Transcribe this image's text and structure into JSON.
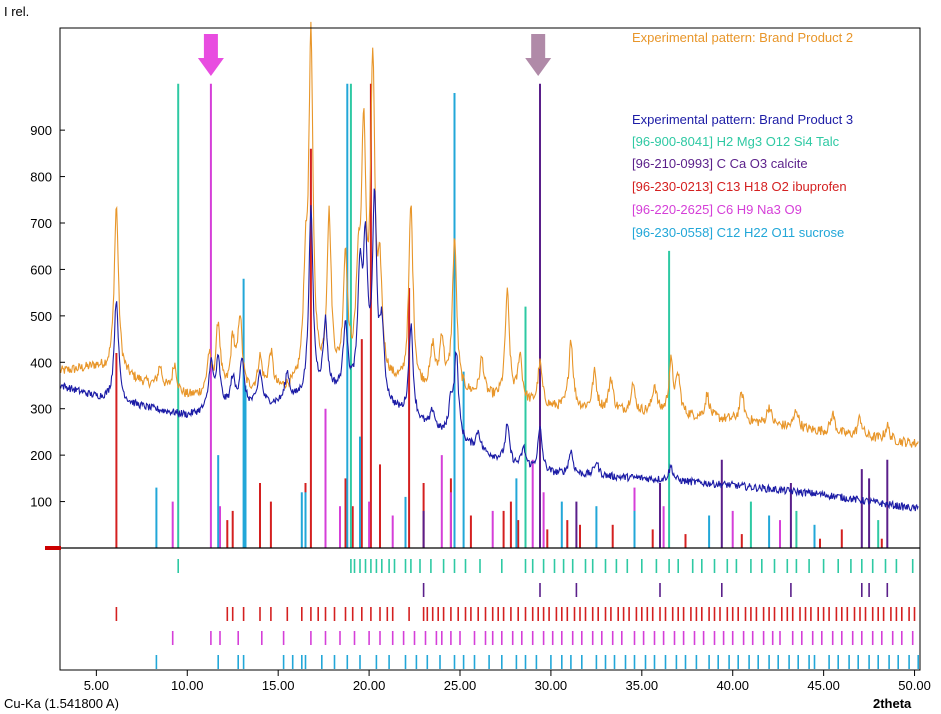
{
  "chart_data": {
    "type": "line",
    "ylabel": "I rel.",
    "xlabel": "2theta",
    "radiation": "Cu-Ka (1.541800 A)",
    "xlim": [
      3,
      50.3
    ],
    "ylim": [
      0,
      1120
    ],
    "xticks": [
      5,
      10,
      15,
      20,
      25,
      30,
      35,
      40,
      45,
      50
    ],
    "xtick_labels": [
      "5.00",
      "10.00",
      "15.00",
      "20.00",
      "25.00",
      "30.00",
      "35.00",
      "40.00",
      "45.00",
      "50.00"
    ],
    "yticks": [
      100,
      200,
      300,
      400,
      500,
      600,
      700,
      800,
      900
    ],
    "colors": {
      "product2": "#e8962a",
      "product3": "#1c1ca6",
      "talc": "#2ec9a3",
      "calcite": "#5a1f8a",
      "ibuprofen": "#d42020",
      "na_citrate": "#d53fd8",
      "sucrose": "#22a7d8",
      "arrow_magenta": "#e84de0",
      "arrow_mauve": "#b08aa8"
    },
    "legend": [
      {
        "key": "product2",
        "label": "Experimental pattern: Brand Product 2"
      },
      {
        "key": "product3",
        "label": "Experimental pattern: Brand Product 3"
      },
      {
        "key": "talc",
        "label": "[96-900-8041] H2 Mg3 O12 Si4  Talc"
      },
      {
        "key": "calcite",
        "label": "[96-210-0993] C Ca O3  calcite"
      },
      {
        "key": "ibuprofen",
        "label": "[96-230-0213] C13 H18 O2 ibuprofen"
      },
      {
        "key": "na_citrate",
        "label": "[96-220-2625] C6 H9 Na3 O9"
      },
      {
        "key": "sucrose",
        "label": "[96-230-0558] C12 H22 O11 sucrose"
      }
    ],
    "arrows": [
      {
        "x": 11.3,
        "color_key": "arrow_magenta"
      },
      {
        "x": 29.3,
        "color_key": "arrow_mauve"
      }
    ],
    "series": [
      {
        "key": "product2",
        "baseline": [
          [
            3,
            380
          ],
          [
            5,
            390
          ],
          [
            8,
            350
          ],
          [
            10,
            325
          ],
          [
            15,
            335
          ],
          [
            20,
            360
          ],
          [
            22,
            340
          ],
          [
            25,
            330
          ],
          [
            30,
            300
          ],
          [
            35,
            290
          ],
          [
            40,
            275
          ],
          [
            45,
            250
          ],
          [
            50,
            225
          ]
        ],
        "peaks": [
          [
            6.1,
            360
          ],
          [
            8.5,
            45
          ],
          [
            9.3,
            60
          ],
          [
            11.2,
            80
          ],
          [
            11.7,
            150
          ],
          [
            12.5,
            110
          ],
          [
            12.9,
            160
          ],
          [
            14.0,
            70
          ],
          [
            14.6,
            80
          ],
          [
            16.5,
            200
          ],
          [
            16.8,
            730
          ],
          [
            17.8,
            350
          ],
          [
            18.7,
            260
          ],
          [
            19.4,
            190
          ],
          [
            19.7,
            500
          ],
          [
            20.2,
            650
          ],
          [
            20.6,
            200
          ],
          [
            22.3,
            390
          ],
          [
            23.5,
            90
          ],
          [
            24.0,
            110
          ],
          [
            24.7,
            330
          ],
          [
            26.2,
            80
          ],
          [
            27.6,
            230
          ],
          [
            28.3,
            100
          ],
          [
            29.4,
            90
          ],
          [
            31.1,
            150
          ],
          [
            32.4,
            80
          ],
          [
            33.3,
            70
          ],
          [
            34.5,
            60
          ],
          [
            35.7,
            60
          ],
          [
            36.6,
            110
          ],
          [
            37.0,
            80
          ],
          [
            38.6,
            50
          ],
          [
            40.5,
            60
          ],
          [
            42.0,
            40
          ],
          [
            43.5,
            40
          ],
          [
            45.5,
            40
          ],
          [
            47.0,
            40
          ],
          [
            48.5,
            30
          ]
        ]
      },
      {
        "key": "product3",
        "baseline": [
          [
            3,
            350
          ],
          [
            5,
            325
          ],
          [
            8,
            300
          ],
          [
            10,
            285
          ],
          [
            12,
            300
          ],
          [
            15,
            310
          ],
          [
            18,
            330
          ],
          [
            20,
            320
          ],
          [
            22,
            280
          ],
          [
            25,
            225
          ],
          [
            28,
            175
          ],
          [
            30,
            160
          ],
          [
            35,
            150
          ],
          [
            40,
            135
          ],
          [
            45,
            115
          ],
          [
            50,
            85
          ]
        ],
        "peaks": [
          [
            6.1,
            220
          ],
          [
            11.3,
            100
          ],
          [
            11.7,
            100
          ],
          [
            12.5,
            60
          ],
          [
            13.0,
            100
          ],
          [
            14.0,
            70
          ],
          [
            15.5,
            60
          ],
          [
            16.8,
            400
          ],
          [
            17.6,
            150
          ],
          [
            18.7,
            150
          ],
          [
            19.5,
            250
          ],
          [
            19.8,
            300
          ],
          [
            20.3,
            410
          ],
          [
            20.7,
            150
          ],
          [
            22.3,
            200
          ],
          [
            23.5,
            40
          ],
          [
            24.5,
            70
          ],
          [
            24.8,
            180
          ],
          [
            26.0,
            40
          ],
          [
            27.6,
            80
          ],
          [
            28.5,
            40
          ],
          [
            29.4,
            90
          ],
          [
            31.1,
            50
          ],
          [
            32.5,
            30
          ],
          [
            36.6,
            30
          ]
        ]
      }
    ],
    "sticks": [
      {
        "key": "ibuprofen",
        "peaks": [
          [
            6.1,
            420
          ],
          [
            12.2,
            60
          ],
          [
            12.5,
            80
          ],
          [
            14.0,
            140
          ],
          [
            14.6,
            100
          ],
          [
            16.5,
            140
          ],
          [
            16.8,
            860
          ],
          [
            17.6,
            210
          ],
          [
            18.7,
            150
          ],
          [
            19.1,
            90
          ],
          [
            19.6,
            450
          ],
          [
            20.1,
            1000
          ],
          [
            20.6,
            180
          ],
          [
            22.2,
            560
          ],
          [
            23.0,
            140
          ],
          [
            24.5,
            150
          ],
          [
            25.6,
            70
          ],
          [
            27.4,
            80
          ],
          [
            27.8,
            100
          ],
          [
            28.2,
            60
          ],
          [
            29.8,
            40
          ],
          [
            30.9,
            60
          ],
          [
            31.6,
            50
          ],
          [
            33.4,
            50
          ],
          [
            35.6,
            40
          ],
          [
            37.4,
            30
          ],
          [
            40.5,
            30
          ],
          [
            44.8,
            20
          ],
          [
            46.0,
            40
          ],
          [
            48.2,
            20
          ]
        ]
      },
      {
        "key": "talc",
        "peaks": [
          [
            9.5,
            1000
          ],
          [
            19.0,
            1000
          ],
          [
            28.6,
            520
          ],
          [
            36.5,
            640
          ],
          [
            41.0,
            100
          ],
          [
            43.5,
            80
          ],
          [
            48.0,
            60
          ]
        ]
      },
      {
        "key": "calcite",
        "peaks": [
          [
            23.0,
            80
          ],
          [
            29.4,
            1000
          ],
          [
            31.4,
            100
          ],
          [
            36.0,
            140
          ],
          [
            39.4,
            190
          ],
          [
            43.2,
            140
          ],
          [
            47.1,
            170
          ],
          [
            47.5,
            150
          ],
          [
            48.5,
            190
          ]
        ]
      },
      {
        "key": "na_citrate",
        "peaks": [
          [
            9.2,
            100
          ],
          [
            11.3,
            1000
          ],
          [
            11.8,
            90
          ],
          [
            17.6,
            300
          ],
          [
            18.4,
            90
          ],
          [
            20.0,
            100
          ],
          [
            21.3,
            70
          ],
          [
            24.0,
            200
          ],
          [
            24.5,
            120
          ],
          [
            26.8,
            80
          ],
          [
            29.0,
            190
          ],
          [
            29.6,
            120
          ],
          [
            34.6,
            130
          ],
          [
            36.2,
            90
          ],
          [
            40.0,
            80
          ],
          [
            42.6,
            60
          ]
        ]
      },
      {
        "key": "sucrose",
        "peaks": [
          [
            8.3,
            130
          ],
          [
            11.7,
            200
          ],
          [
            13.1,
            580
          ],
          [
            13.2,
            350
          ],
          [
            16.3,
            120
          ],
          [
            16.5,
            120
          ],
          [
            18.8,
            1000
          ],
          [
            19.5,
            240
          ],
          [
            22.0,
            110
          ],
          [
            24.7,
            980
          ],
          [
            25.2,
            380
          ],
          [
            28.1,
            150
          ],
          [
            30.6,
            100
          ],
          [
            32.5,
            90
          ],
          [
            34.6,
            80
          ],
          [
            38.7,
            70
          ],
          [
            42.0,
            70
          ],
          [
            44.5,
            50
          ]
        ]
      }
    ],
    "tick_rows": [
      {
        "key": "talc",
        "x": [
          9.5,
          19.0,
          19.2,
          19.5,
          19.8,
          20.1,
          20.4,
          20.7,
          21.1,
          21.4,
          22.0,
          22.3,
          22.8,
          23.4,
          24.1,
          24.7,
          25.3,
          26.1,
          27.3,
          28.6,
          29.0,
          29.6,
          30.2,
          30.7,
          31.2,
          31.9,
          32.3,
          33.0,
          33.6,
          34.2,
          35.0,
          35.8,
          36.5,
          37.0,
          37.8,
          38.3,
          39.0,
          39.7,
          40.2,
          41.0,
          41.6,
          42.3,
          43.0,
          43.5,
          44.2,
          45.0,
          45.8,
          46.5,
          47.1,
          47.7,
          48.4,
          49.0,
          49.9
        ]
      },
      {
        "key": "calcite",
        "x": [
          23.0,
          29.4,
          31.4,
          36.0,
          39.4,
          43.2,
          47.1,
          47.5,
          48.5
        ]
      },
      {
        "key": "ibuprofen",
        "x": [
          6.1,
          12.2,
          12.5,
          13.1,
          14.0,
          14.6,
          15.5,
          16.3,
          16.8,
          17.2,
          17.6,
          18.1,
          18.7,
          19.1,
          19.6,
          20.1,
          20.6,
          21.0,
          21.3,
          22.2,
          23.0,
          23.2,
          23.5,
          23.8,
          24.1,
          24.5,
          24.9,
          25.3,
          25.6,
          26.0,
          26.4,
          26.8,
          27.1,
          27.4,
          27.8,
          28.2,
          28.6,
          29.0,
          29.3,
          29.6,
          29.9,
          30.3,
          30.6,
          30.9,
          31.3,
          31.6,
          31.9,
          32.3,
          32.6,
          33.0,
          33.3,
          33.7,
          34.0,
          34.3,
          34.7,
          35.0,
          35.3,
          35.6,
          36.0,
          36.3,
          36.7,
          37.0,
          37.3,
          37.7,
          38.0,
          38.3,
          38.7,
          39.0,
          39.3,
          39.7,
          40.0,
          40.3,
          40.7,
          41.0,
          41.3,
          41.7,
          42.0,
          42.3,
          42.7,
          43.0,
          43.3,
          43.7,
          44.0,
          44.3,
          44.7,
          45.0,
          45.3,
          45.7,
          46.0,
          46.3,
          46.7,
          47.0,
          47.3,
          47.7,
          48.0,
          48.3,
          48.7,
          49.0,
          49.3,
          49.7,
          50.0
        ]
      },
      {
        "key": "na_citrate",
        "x": [
          9.2,
          11.3,
          11.8,
          12.8,
          14.1,
          15.3,
          16.8,
          17.6,
          18.4,
          19.2,
          20.0,
          20.6,
          21.3,
          21.9,
          22.5,
          23.1,
          23.7,
          24.0,
          24.5,
          25.0,
          25.8,
          26.4,
          26.8,
          27.3,
          27.9,
          28.4,
          29.0,
          29.6,
          30.1,
          30.6,
          31.2,
          31.7,
          32.3,
          32.8,
          33.4,
          33.9,
          34.6,
          35.1,
          35.7,
          36.2,
          36.8,
          37.3,
          37.9,
          38.4,
          39.0,
          39.5,
          40.0,
          40.6,
          41.1,
          41.7,
          42.2,
          42.6,
          43.3,
          43.8,
          44.4,
          44.9,
          45.5,
          46.0,
          46.6,
          47.1,
          47.7,
          48.2,
          48.8,
          49.3,
          49.9
        ]
      },
      {
        "key": "sucrose",
        "x": [
          8.3,
          11.7,
          12.8,
          13.1,
          15.3,
          15.8,
          16.3,
          16.5,
          17.4,
          18.1,
          18.8,
          19.5,
          20.4,
          21.1,
          22.0,
          22.6,
          23.2,
          23.9,
          24.7,
          25.2,
          25.8,
          26.6,
          27.3,
          28.1,
          28.6,
          29.2,
          30.0,
          30.6,
          31.1,
          31.7,
          32.5,
          33.0,
          33.5,
          34.1,
          34.6,
          35.2,
          35.7,
          36.3,
          36.9,
          37.4,
          38.0,
          38.7,
          39.2,
          39.8,
          40.3,
          40.9,
          41.4,
          42.0,
          42.5,
          43.1,
          43.6,
          44.2,
          44.5,
          45.3,
          45.8,
          46.4,
          46.9,
          47.5,
          48.0,
          48.6,
          49.1,
          49.7,
          50.2
        ]
      }
    ]
  }
}
